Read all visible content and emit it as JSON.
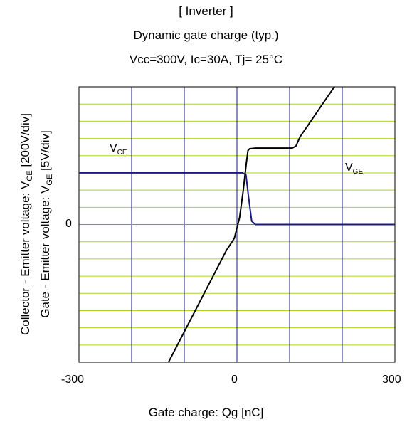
{
  "chart_data": {
    "type": "line",
    "title": "[ Inverter ]",
    "subtitle": "Dynamic gate charge  (typ.)",
    "conditions": "Vcc=300V,   Ic=30A,   Tj= 25°C",
    "xlabel": "Gate charge: Qg [nC]",
    "ylabel_left_outer": {
      "prefix": "Collector - Emitter voltage: V",
      "sub": "CE",
      "suffix": " [200V/div]"
    },
    "ylabel_left_inner": {
      "prefix": "Gate - Emitter voltage:  V",
      "sub": "GE",
      "suffix": " [5V/div]"
    },
    "xlim": [
      -300,
      300
    ],
    "x_ticks": [
      "-300",
      "0",
      "300"
    ],
    "y_tick_zero": "0",
    "ylim_div": [
      -4,
      4
    ],
    "grid": true,
    "series": [
      {
        "name_main": "V",
        "name_sub": "CE",
        "unit": "div (200V/div)",
        "x": [
          -300,
          0,
          10,
          17,
          22,
          28,
          35,
          300
        ],
        "y": [
          1.5,
          1.5,
          1.5,
          1.45,
          0.8,
          0.1,
          0,
          0
        ]
      },
      {
        "name_main": "V",
        "name_sub": "GE",
        "unit": "div (5V/div)",
        "x": [
          -130,
          -20,
          -5,
          5,
          12,
          18,
          21,
          24,
          35,
          105,
          112,
          120,
          185
        ],
        "y": [
          -4,
          -0.75,
          -0.4,
          0.2,
          1.0,
          1.8,
          2.15,
          2.2,
          2.22,
          2.22,
          2.28,
          2.55,
          4.0
        ]
      }
    ],
    "colors": {
      "vce": "#1a1a80",
      "vge": "#000000",
      "grid_vertical": "#1a1a80",
      "grid_horizontal": "#a6d71e",
      "zero_line": "#6b7cff",
      "frame": "#000000"
    }
  }
}
